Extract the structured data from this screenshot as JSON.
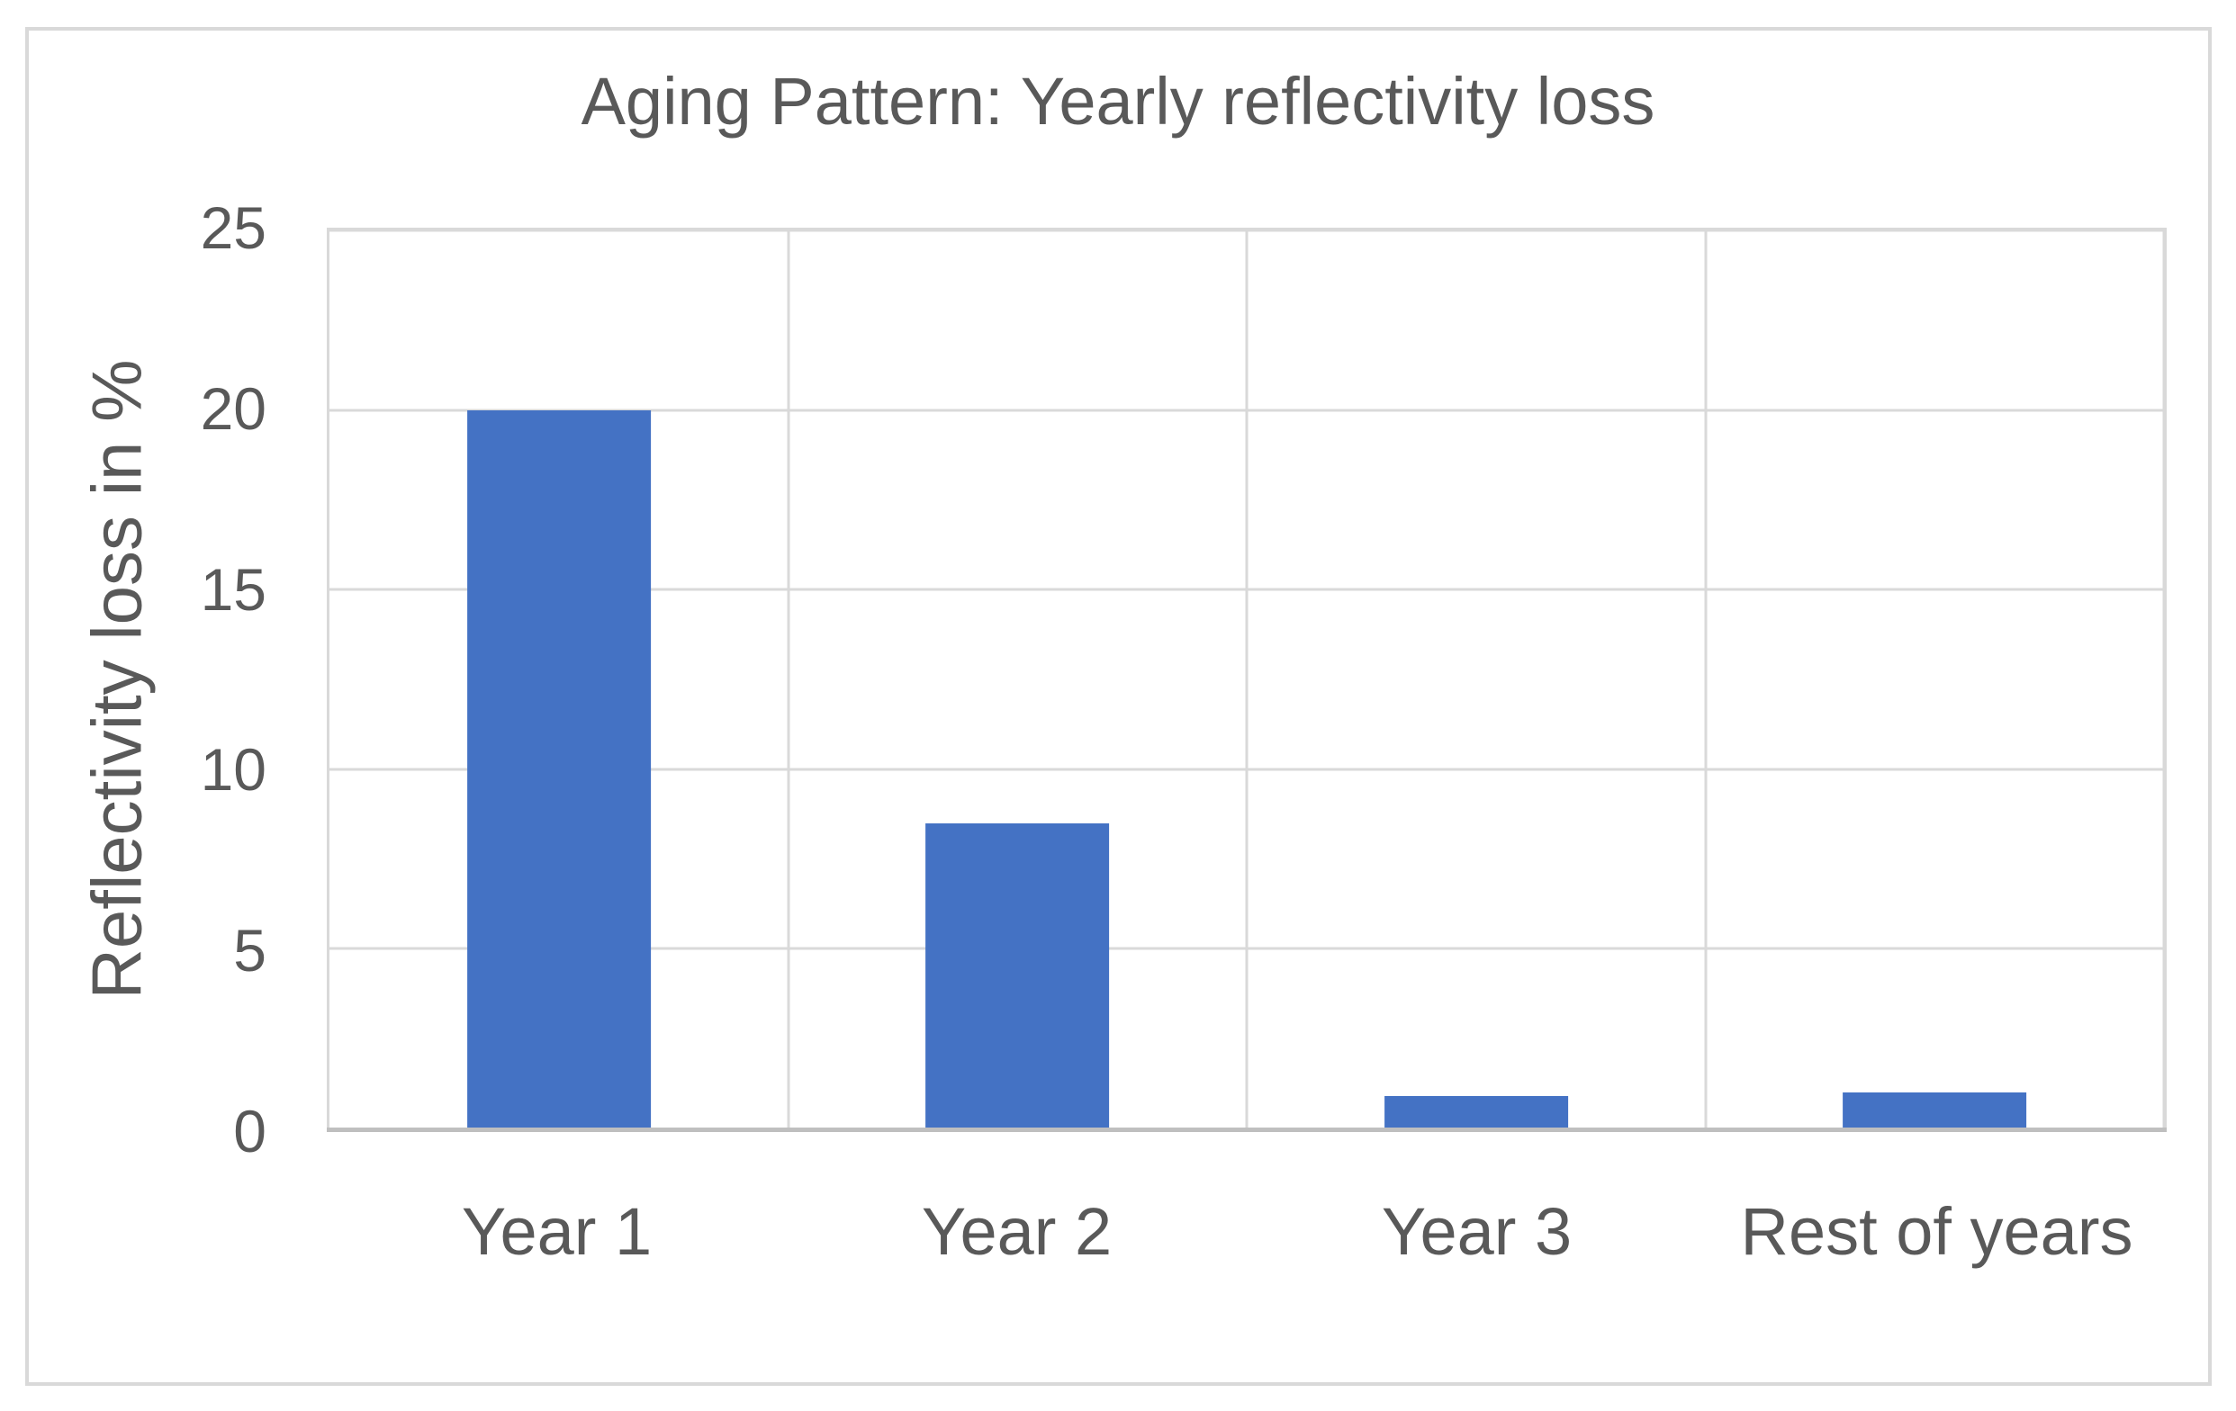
{
  "chart_data": {
    "type": "bar",
    "title": "Aging Pattern: Yearly reflectivity loss",
    "xlabel": "",
    "ylabel": "Reflectivity loss in %",
    "categories": [
      "Year 1",
      "Year 2",
      "Year 3",
      "Rest of years"
    ],
    "values": [
      20,
      8.5,
      0.9,
      1
    ],
    "ylim": [
      0,
      25
    ],
    "yticks": [
      0,
      5,
      10,
      15,
      20,
      25
    ],
    "grid": "on",
    "legend": "none",
    "bar_width_fraction": 0.4,
    "colors": {
      "bar": "#4472C4",
      "gridline": "#D9D9D9",
      "axis_line": "#BFBFBF",
      "text": "#595959",
      "chart_border": "#D9D9D9",
      "background": "#FFFFFF"
    }
  }
}
